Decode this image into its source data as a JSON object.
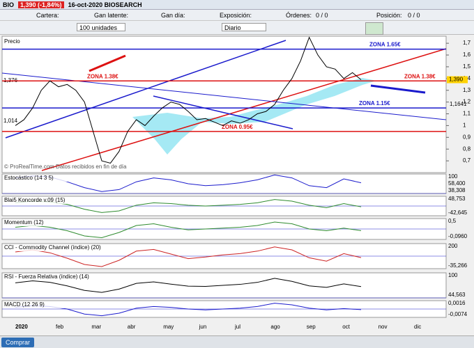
{
  "window": {
    "symbol": "BIO",
    "quote": "1,390 (-1,84%)",
    "caption": "16-oct-2020 BIOSEARCH"
  },
  "toolbar": {
    "fields": [
      "Cartera:",
      "Gan latente:",
      "Gan día:",
      "Exposición:"
    ],
    "orders_label": "Órdenes:",
    "orders_value": "0 / 0",
    "position_label": "Posición:",
    "position_value": "0 / 0",
    "quantity": "100 unidades",
    "period": "Diario"
  },
  "price_panel": {
    "title": "Precio",
    "watermark": "© ProRealTime.com Datos recibidos en fin de día",
    "ylim": [
      0.6,
      1.76
    ],
    "yticks": [
      {
        "value": 1.7,
        "label": "1,7"
      },
      {
        "value": 1.6,
        "label": "1,6"
      },
      {
        "value": 1.5,
        "label": "1,5"
      },
      {
        "value": 1.4,
        "label": "1,4"
      },
      {
        "value": 1.3,
        "label": "1,3"
      },
      {
        "value": 1.2,
        "label": "1,2"
      },
      {
        "value": 1.1,
        "label": "1,1"
      },
      1,
      {
        "value": 0.9,
        "label": "0,9"
      },
      {
        "value": 0.8,
        "label": "0,8"
      },
      {
        "value": 0.7,
        "label": "0,7"
      }
    ],
    "last": {
      "value": 1.39,
      "label": "1,390"
    },
    "side_labels": [
      "1,376",
      "1,014",
      "1,1641"
    ],
    "closes": [
      1.0,
      1.05,
      1.15,
      1.3,
      1.38,
      1.33,
      1.35,
      1.3,
      1.2,
      0.95,
      0.7,
      0.68,
      0.78,
      0.95,
      1.05,
      1.0,
      1.08,
      1.15,
      1.2,
      1.18,
      1.12,
      1.05,
      1.06,
      1.03,
      1.0,
      1.04,
      1.02,
      1.05,
      1.1,
      1.12,
      1.18,
      1.3,
      1.4,
      1.55,
      1.75,
      1.6,
      1.5,
      1.48,
      1.4,
      1.45,
      1.39
    ],
    "color": "#000000",
    "zones": [
      {
        "label": "ZONA 1.65€",
        "value": 1.65,
        "color": "#1a1acc"
      },
      {
        "label": "ZONA 1.38€",
        "value": 1.38,
        "color": "#dd1111"
      },
      {
        "label": "ZONA 1.15€",
        "value": 1.15,
        "color": "#1a1acc"
      },
      {
        "label": "ZONA 0.95€",
        "value": 0.95,
        "color": "#dd1111"
      }
    ]
  },
  "indicators": [
    {
      "title": "Estocástico (14 3 5)",
      "labels": [
        "100",
        "58,400",
        "38,308"
      ],
      "ylim": [
        0,
        100
      ],
      "color": "#1a1acc",
      "values": [
        80,
        90,
        85,
        60,
        30,
        10,
        20,
        60,
        80,
        70,
        50,
        40,
        45,
        55,
        70,
        95,
        80,
        40,
        30,
        75,
        55
      ]
    },
    {
      "title": "Blai5 Koncorde v.09 (15)",
      "labels": [
        "48,753",
        "-42,645"
      ],
      "ylim": [
        -60,
        60
      ],
      "color": "#2e8b2e",
      "values": [
        20,
        30,
        25,
        10,
        -20,
        -40,
        -30,
        5,
        20,
        15,
        5,
        0,
        5,
        10,
        20,
        40,
        30,
        5,
        -10,
        15,
        -5
      ]
    },
    {
      "title": "Momentum (12)",
      "labels": [
        "0,5",
        "-0,0960"
      ],
      "ylim": [
        -0.6,
        0.6
      ],
      "color": "#2e8b2e",
      "values": [
        0.1,
        0.2,
        0.1,
        -0.1,
        -0.4,
        -0.5,
        -0.2,
        0.2,
        0.3,
        0.1,
        -0.05,
        0,
        0.05,
        0.1,
        0.2,
        0.4,
        0.3,
        0,
        -0.1,
        0.05,
        -0.096
      ]
    },
    {
      "title": "CCI - Commodity Channel (índice) (20)",
      "labels": [
        "200",
        "-35,266"
      ],
      "ylim": [
        -300,
        300
      ],
      "color": "#cc2222",
      "values": [
        100,
        150,
        80,
        -50,
        -200,
        -250,
        -100,
        120,
        160,
        50,
        -60,
        -20,
        30,
        60,
        120,
        220,
        150,
        -40,
        -120,
        60,
        -35
      ]
    },
    {
      "title": "RSI - Fuerza Relativa (índice) (14)",
      "labels": [
        "100",
        "44,563"
      ],
      "ylim": [
        0,
        100
      ],
      "color": "#000000",
      "values": [
        60,
        68,
        62,
        48,
        30,
        22,
        35,
        58,
        64,
        55,
        47,
        46,
        50,
        54,
        62,
        78,
        66,
        48,
        42,
        56,
        45
      ]
    },
    {
      "title": "MACD (12 26 9)",
      "labels": [
        "0,0016",
        "-0,0074"
      ],
      "ylim": [
        -0.1,
        0.1
      ],
      "color": "#1a1acc",
      "values": [
        0.02,
        0.04,
        0.03,
        0,
        -0.06,
        -0.08,
        -0.05,
        0.01,
        0.03,
        0.02,
        0,
        -0.01,
        0,
        0.01,
        0.03,
        0.07,
        0.05,
        0.01,
        -0.01,
        0.005,
        -0.007
      ]
    }
  ],
  "months": [
    "2020",
    "feb",
    "mar",
    "abr",
    "may",
    "jun",
    "jul",
    "ago",
    "sep",
    "oct",
    "nov",
    "dic"
  ],
  "footer": {
    "buy": "Comprar"
  }
}
